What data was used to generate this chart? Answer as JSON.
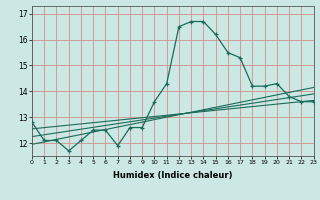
{
  "xlabel": "Humidex (Indice chaleur)",
  "background_color": "#cce8e4",
  "grid_color": "#d4908a",
  "line_color": "#1a6b5a",
  "x_min": 0,
  "x_max": 23,
  "y_min": 11.5,
  "y_max": 17.3,
  "y_ticks": [
    12,
    13,
    14,
    15,
    16,
    17
  ],
  "series1_x": [
    0,
    1,
    2,
    3,
    4,
    5,
    6,
    7,
    8,
    9,
    10,
    11,
    12,
    13,
    14,
    15,
    16,
    17,
    18,
    19,
    20,
    21,
    22,
    23
  ],
  "series1_y": [
    12.8,
    12.1,
    12.1,
    11.7,
    12.1,
    12.5,
    12.5,
    11.9,
    12.6,
    12.6,
    13.6,
    14.3,
    16.5,
    16.7,
    16.7,
    16.2,
    15.5,
    15.3,
    14.2,
    14.2,
    14.3,
    13.8,
    13.6,
    13.6
  ],
  "series2_x": [
    0,
    23
  ],
  "series2_y": [
    12.55,
    13.65
  ],
  "series3_x": [
    0,
    23
  ],
  "series3_y": [
    12.25,
    13.9
  ],
  "series4_x": [
    0,
    23
  ],
  "series4_y": [
    11.95,
    14.15
  ]
}
